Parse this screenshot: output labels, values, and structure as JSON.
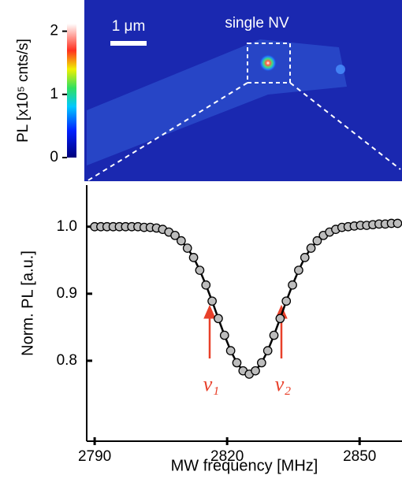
{
  "chart_data": [
    {
      "type": "heatmap",
      "colorbar_label": "PL [x10⁵ cnts/s]",
      "clim": [
        0,
        2.12
      ],
      "cticks": [
        0,
        1,
        2
      ],
      "annotations": [
        "1 μm",
        "single NV"
      ]
    },
    {
      "type": "line",
      "xlabel": "MW frequency [MHz]",
      "ylabel": "Norm. PL [a.u.]",
      "x": [
        2790.0,
        2791.4,
        2792.8,
        2794.2,
        2795.6,
        2797.0,
        2798.4,
        2799.8,
        2801.2,
        2802.6,
        2804.0,
        2805.4,
        2806.8,
        2808.2,
        2809.6,
        2811.0,
        2812.4,
        2813.8,
        2815.2,
        2816.6,
        2818.0,
        2819.4,
        2820.8,
        2822.2,
        2823.6,
        2825.0,
        2826.4,
        2827.8,
        2829.2,
        2830.6,
        2832.0,
        2833.4,
        2834.8,
        2836.2,
        2837.6,
        2839.0,
        2840.4,
        2841.8,
        2843.2,
        2844.6,
        2846.0,
        2847.4,
        2848.8,
        2850.2,
        2851.6,
        2853.0,
        2854.4,
        2855.8,
        2857.2,
        2858.6
      ],
      "series": [
        {
          "color": "#bdbdbd",
          "line_color": "#000000",
          "values": [
            1.0,
            1.0,
            1.0,
            1.0,
            1.0,
            1.0,
            1.0,
            1.0,
            0.999,
            0.999,
            0.998,
            0.996,
            0.992,
            0.987,
            0.979,
            0.968,
            0.954,
            0.935,
            0.913,
            0.889,
            0.863,
            0.838,
            0.815,
            0.797,
            0.785,
            0.78,
            0.785,
            0.797,
            0.815,
            0.838,
            0.863,
            0.889,
            0.913,
            0.935,
            0.954,
            0.968,
            0.979,
            0.987,
            0.992,
            0.996,
            0.999,
            1.0,
            1.001,
            1.002,
            1.002,
            1.003,
            1.004,
            1.004,
            1.005,
            1.005
          ]
        }
      ],
      "xlim": [
        2788.2,
        2859.6
      ],
      "ylim": [
        0.68,
        1.062
      ],
      "xticks": [
        2790,
        2820,
        2850
      ],
      "yticks": [
        {
          "value": 1,
          "label": "1.0"
        },
        0.9,
        0.8
      ],
      "annotations": [
        "ν₁",
        "ν₂"
      ],
      "annotation_color": "#e8402a"
    }
  ]
}
